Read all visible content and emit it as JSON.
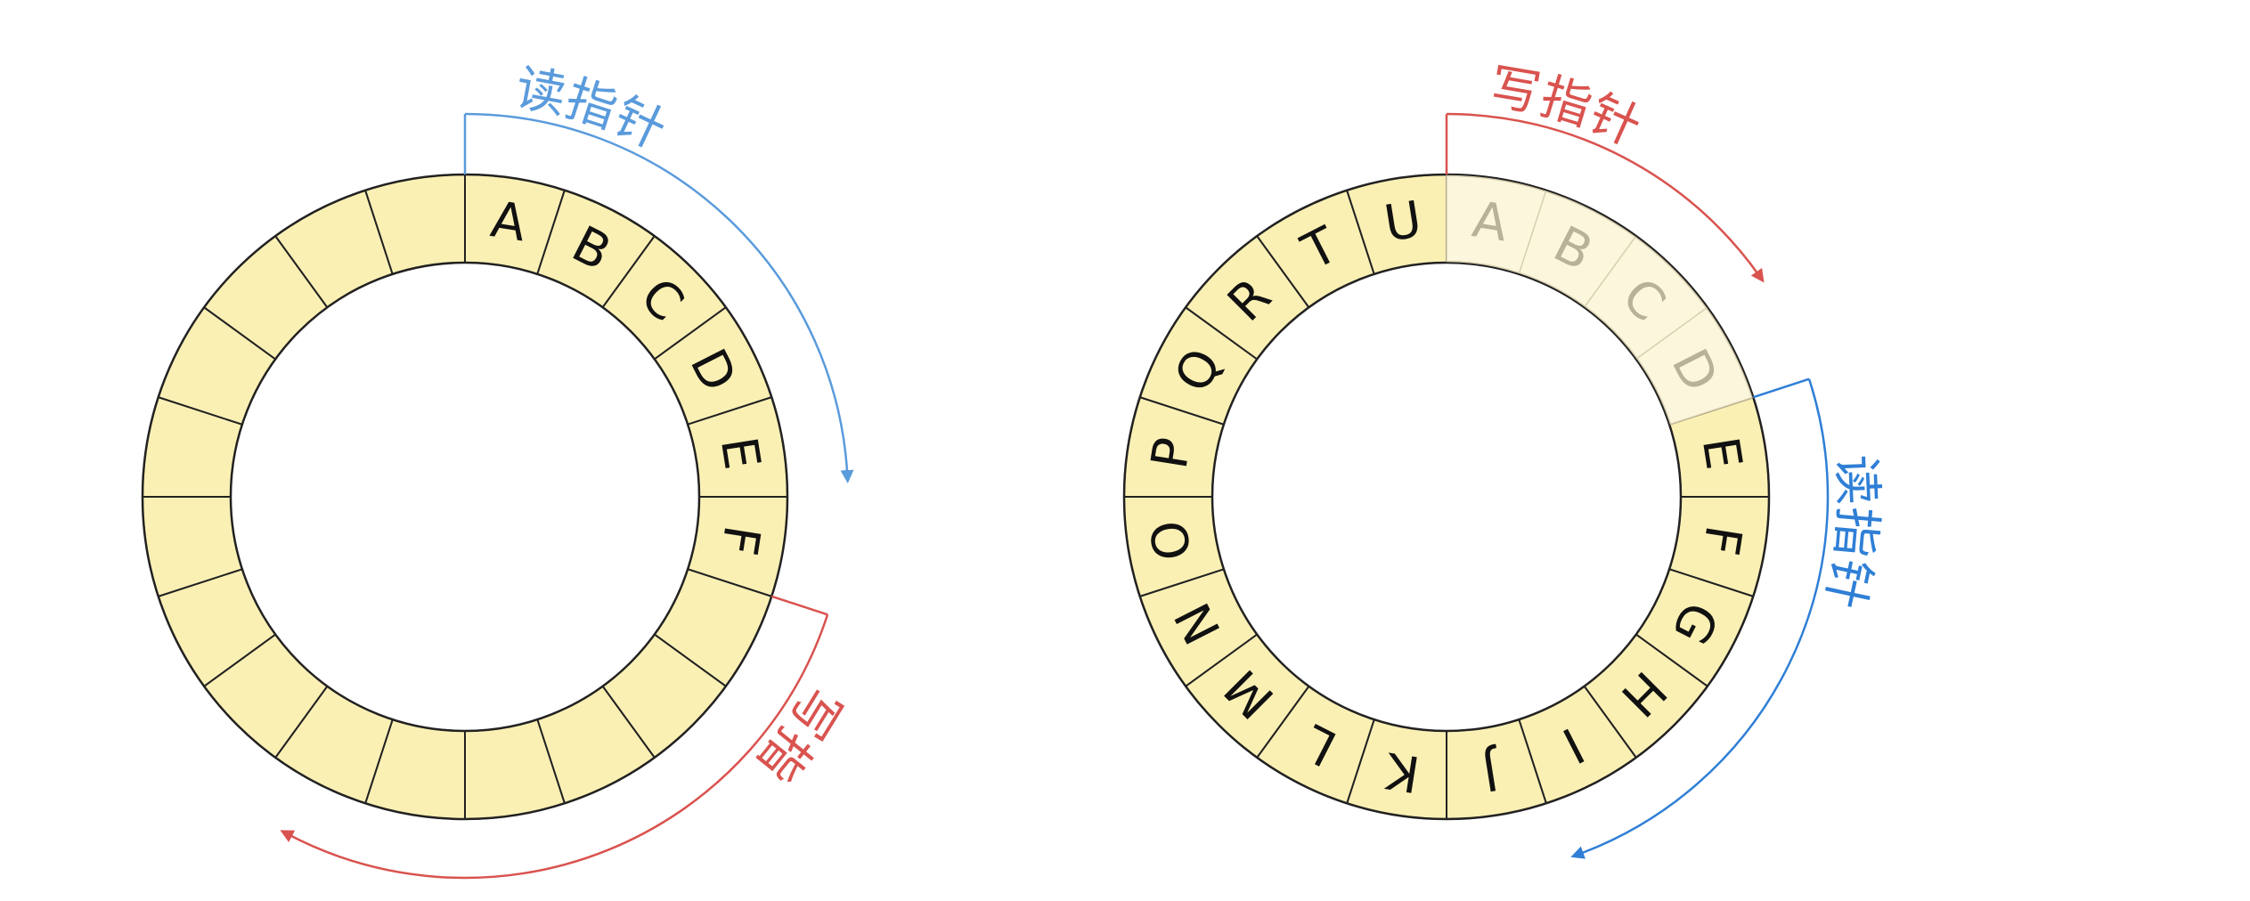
{
  "diagrams": [
    {
      "id": "left-ring",
      "segment_count": 20,
      "segments": [
        {
          "index": 0,
          "label": "A"
        },
        {
          "index": 1,
          "label": "B"
        },
        {
          "index": 2,
          "label": "C"
        },
        {
          "index": 3,
          "label": "D"
        },
        {
          "index": 4,
          "label": "E"
        },
        {
          "index": 5,
          "label": "F"
        }
      ],
      "pointers": [
        {
          "name": "read-pointer",
          "label": "读指针",
          "color": "#5a9bdc",
          "at_boundary": 0,
          "arrow_direction": "clockwise"
        },
        {
          "name": "write-pointer",
          "label": "写指针",
          "color": "#d9534f",
          "at_boundary": 6,
          "arrow_direction": "clockwise"
        }
      ]
    },
    {
      "id": "right-ring",
      "segment_count": 20,
      "segments": [
        {
          "index": 0,
          "label": "A",
          "faded": true
        },
        {
          "index": 1,
          "label": "B",
          "faded": true
        },
        {
          "index": 2,
          "label": "C",
          "faded": true
        },
        {
          "index": 3,
          "label": "D",
          "faded": true
        },
        {
          "index": 4,
          "label": "E"
        },
        {
          "index": 5,
          "label": "F"
        },
        {
          "index": 6,
          "label": "G"
        },
        {
          "index": 7,
          "label": "H"
        },
        {
          "index": 8,
          "label": "I"
        },
        {
          "index": 9,
          "label": "J"
        },
        {
          "index": 10,
          "label": "K"
        },
        {
          "index": 11,
          "label": "L"
        },
        {
          "index": 12,
          "label": "M"
        },
        {
          "index": 13,
          "label": "N"
        },
        {
          "index": 14,
          "label": "O"
        },
        {
          "index": 15,
          "label": "P"
        },
        {
          "index": 16,
          "label": "Q"
        },
        {
          "index": 17,
          "label": "R"
        },
        {
          "index": 18,
          "label": "T"
        },
        {
          "index": 19,
          "label": "U"
        }
      ],
      "pointers": [
        {
          "name": "write-pointer",
          "label": "写指针",
          "color": "#d9534f",
          "at_boundary": 0,
          "arrow_direction": "clockwise"
        },
        {
          "name": "read-pointer",
          "label": "读指针",
          "color": "#2f7fd6",
          "at_boundary": 4,
          "arrow_direction": "clockwise"
        }
      ]
    }
  ],
  "colors": {
    "segment_fill": "#fbf0b4",
    "segment_faded_fill": "#fcf6dd",
    "segment_stroke": "#222222",
    "faded_stroke": "#d8d0b0",
    "label_color": "#111111",
    "faded_label_color": "#b8b29a"
  }
}
